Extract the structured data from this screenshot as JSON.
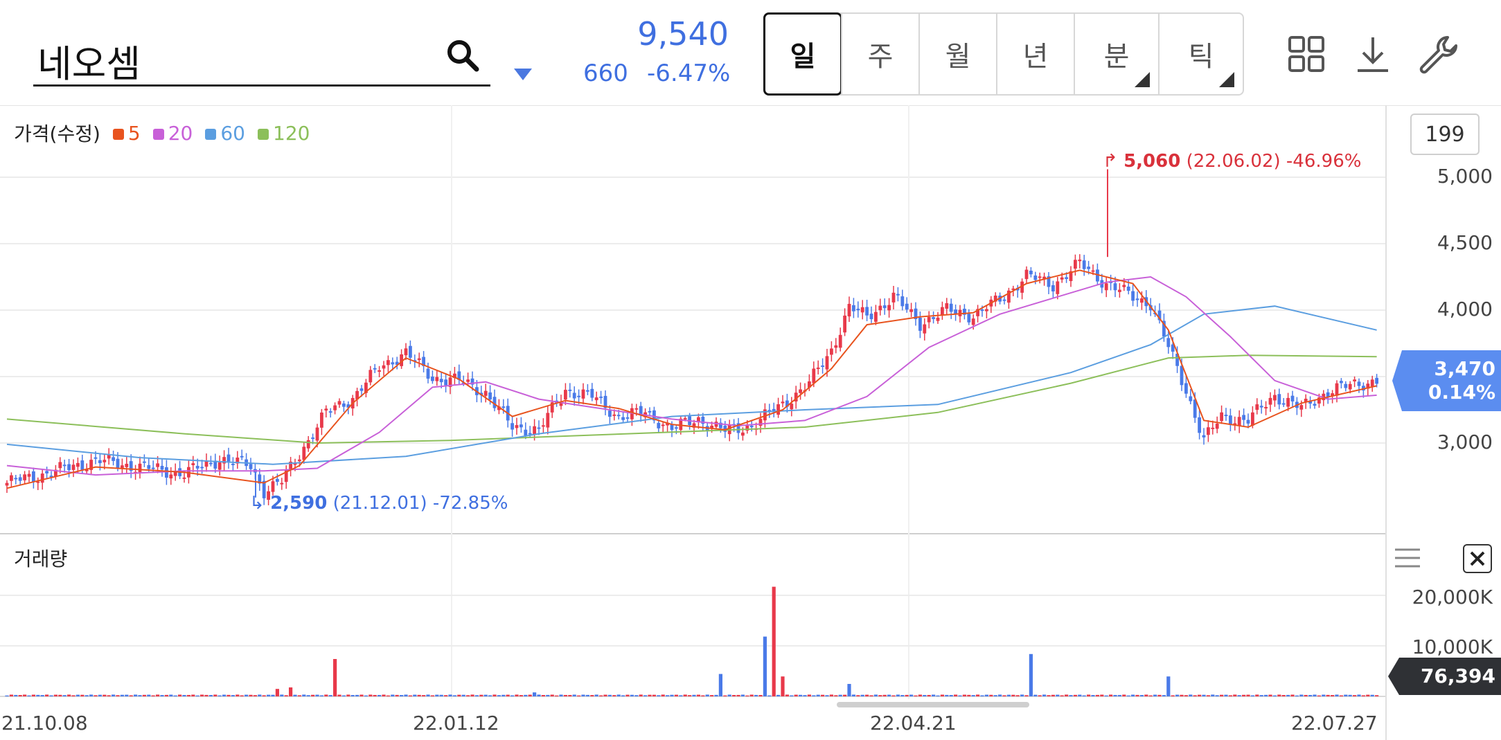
{
  "stock": {
    "name": "네오셈",
    "price": "9,540",
    "change": "660",
    "change_pct": "-6.47%"
  },
  "periods": [
    {
      "label": "일",
      "active": true,
      "has_submenu": false
    },
    {
      "label": "주",
      "active": false,
      "has_submenu": false
    },
    {
      "label": "월",
      "active": false,
      "has_submenu": false
    },
    {
      "label": "년",
      "active": false,
      "has_submenu": false
    },
    {
      "label": "분",
      "active": false,
      "has_submenu": true
    },
    {
      "label": "틱",
      "active": false,
      "has_submenu": true
    }
  ],
  "toolbar_icons": [
    "grid-icon",
    "download-icon",
    "wrench-icon"
  ],
  "legend": {
    "title": "가격(수정)",
    "items": [
      {
        "label": "5",
        "color": "#e8531e"
      },
      {
        "label": "20",
        "color": "#c860d8"
      },
      {
        "label": "60",
        "color": "#5b9ee0"
      },
      {
        "label": "120",
        "color": "#8cbf5a"
      }
    ]
  },
  "candle_count": "199",
  "current_price_tag": {
    "price": "3,470",
    "pct": "0.14%"
  },
  "volume": {
    "label": "거래량",
    "tag": "76,394"
  },
  "chart_data": {
    "type": "candlestick",
    "y_ticks": [
      "5,000",
      "4,500",
      "4,000",
      "3,000"
    ],
    "y_range": [
      2300,
      5200
    ],
    "volume_ticks": [
      "20,000K",
      "10,000K"
    ],
    "x_ticks": [
      "21.10.08",
      "22.01.12",
      "22.04.21",
      "22.07.27"
    ],
    "high_annotation": {
      "value": "5,060",
      "date": "(22.06.02)",
      "pct": "-46.96%"
    },
    "low_annotation": {
      "value": "2,590",
      "date": "(21.12.01)",
      "pct": "-72.85%"
    },
    "close_keypoints": [
      [
        0,
        2700
      ],
      [
        10,
        2780
      ],
      [
        20,
        2870
      ],
      [
        30,
        2820
      ],
      [
        40,
        2770
      ],
      [
        48,
        2880
      ],
      [
        55,
        2830
      ],
      [
        58,
        2640
      ],
      [
        62,
        2710
      ],
      [
        66,
        2920
      ],
      [
        72,
        3230
      ],
      [
        78,
        3340
      ],
      [
        84,
        3570
      ],
      [
        90,
        3680
      ],
      [
        96,
        3490
      ],
      [
        102,
        3470
      ],
      [
        108,
        3380
      ],
      [
        114,
        3120
      ],
      [
        120,
        3100
      ],
      [
        126,
        3400
      ],
      [
        132,
        3350
      ],
      [
        138,
        3200
      ],
      [
        144,
        3230
      ],
      [
        150,
        3110
      ],
      [
        156,
        3180
      ],
      [
        162,
        3090
      ],
      [
        168,
        3130
      ],
      [
        175,
        3290
      ],
      [
        181,
        3450
      ],
      [
        186,
        3700
      ],
      [
        190,
        4020
      ],
      [
        194,
        3950
      ],
      [
        200,
        4100
      ],
      [
        206,
        3900
      ],
      [
        212,
        4000
      ],
      [
        218,
        3960
      ],
      [
        224,
        4080
      ],
      [
        230,
        4260
      ],
      [
        236,
        4190
      ],
      [
        242,
        4350
      ],
      [
        248,
        4200
      ],
      [
        254,
        4100
      ],
      [
        258,
        4050
      ],
      [
        262,
        3720
      ],
      [
        266,
        3400
      ],
      [
        270,
        3020
      ],
      [
        274,
        3200
      ],
      [
        280,
        3170
      ],
      [
        286,
        3360
      ],
      [
        292,
        3260
      ],
      [
        298,
        3390
      ],
      [
        304,
        3440
      ],
      [
        309,
        3470
      ]
    ],
    "ma5": [
      [
        0,
        2660
      ],
      [
        20,
        2820
      ],
      [
        40,
        2780
      ],
      [
        58,
        2700
      ],
      [
        66,
        2830
      ],
      [
        78,
        3300
      ],
      [
        90,
        3640
      ],
      [
        102,
        3480
      ],
      [
        114,
        3200
      ],
      [
        126,
        3320
      ],
      [
        138,
        3260
      ],
      [
        150,
        3140
      ],
      [
        162,
        3100
      ],
      [
        175,
        3250
      ],
      [
        186,
        3560
      ],
      [
        194,
        3890
      ],
      [
        206,
        3950
      ],
      [
        218,
        3980
      ],
      [
        230,
        4200
      ],
      [
        242,
        4300
      ],
      [
        254,
        4200
      ],
      [
        262,
        3850
      ],
      [
        270,
        3170
      ],
      [
        280,
        3120
      ],
      [
        292,
        3300
      ],
      [
        309,
        3430
      ]
    ],
    "ma20": [
      [
        0,
        2830
      ],
      [
        20,
        2760
      ],
      [
        40,
        2790
      ],
      [
        58,
        2790
      ],
      [
        70,
        2810
      ],
      [
        84,
        3080
      ],
      [
        96,
        3420
      ],
      [
        108,
        3460
      ],
      [
        120,
        3330
      ],
      [
        132,
        3270
      ],
      [
        150,
        3180
      ],
      [
        165,
        3130
      ],
      [
        180,
        3170
      ],
      [
        194,
        3350
      ],
      [
        208,
        3720
      ],
      [
        224,
        3970
      ],
      [
        236,
        4090
      ],
      [
        248,
        4210
      ],
      [
        258,
        4250
      ],
      [
        266,
        4100
      ],
      [
        276,
        3800
      ],
      [
        286,
        3470
      ],
      [
        298,
        3330
      ],
      [
        309,
        3360
      ]
    ],
    "ma60": [
      [
        0,
        2990
      ],
      [
        30,
        2890
      ],
      [
        60,
        2840
      ],
      [
        90,
        2900
      ],
      [
        120,
        3070
      ],
      [
        150,
        3200
      ],
      [
        180,
        3250
      ],
      [
        210,
        3290
      ],
      [
        240,
        3530
      ],
      [
        258,
        3740
      ],
      [
        270,
        3970
      ],
      [
        286,
        4030
      ],
      [
        309,
        3850
      ]
    ],
    "ma120": [
      [
        0,
        3180
      ],
      [
        40,
        3070
      ],
      [
        70,
        3000
      ],
      [
        100,
        3020
      ],
      [
        140,
        3070
      ],
      [
        180,
        3120
      ],
      [
        210,
        3230
      ],
      [
        240,
        3450
      ],
      [
        262,
        3640
      ],
      [
        280,
        3660
      ],
      [
        309,
        3650
      ]
    ],
    "volume_spikes": [
      [
        61,
        1500
      ],
      [
        64,
        1800
      ],
      [
        74,
        7500
      ],
      [
        119,
        800
      ],
      [
        161,
        4500
      ],
      [
        171,
        12000
      ],
      [
        173,
        22000
      ],
      [
        175,
        4000
      ],
      [
        190,
        2500
      ],
      [
        231,
        8500
      ],
      [
        262,
        4000
      ]
    ]
  }
}
